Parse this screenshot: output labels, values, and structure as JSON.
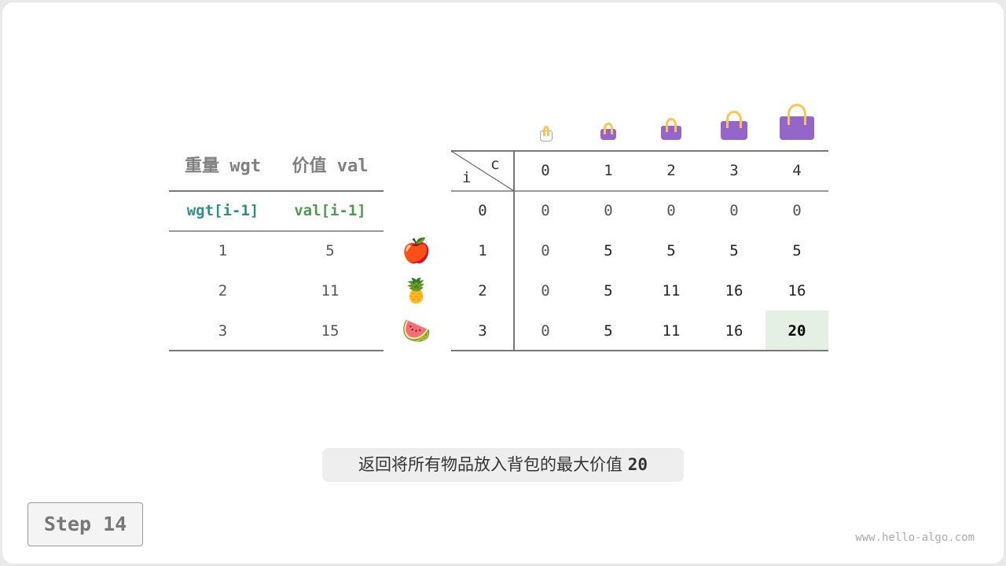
{
  "left_table": {
    "headers": [
      "重量 wgt",
      "价值 val"
    ],
    "subheaders": [
      "wgt[i-1]",
      "val[i-1]"
    ],
    "subheader_colors": [
      "#2f8f87",
      "#4e9a4e"
    ],
    "rows": [
      [
        "1",
        "5"
      ],
      [
        "2",
        "11"
      ],
      [
        "3",
        "15"
      ]
    ],
    "items": [
      "apple",
      "pineapple",
      "watermelon"
    ],
    "item_emoji": [
      "🍎",
      "🍍",
      "🍉"
    ]
  },
  "dp_table": {
    "corner_col": "c",
    "corner_row": "i",
    "capacities": [
      "0",
      "1",
      "2",
      "3",
      "4"
    ],
    "row_labels": [
      "0",
      "1",
      "2",
      "3"
    ],
    "cells": [
      [
        "0",
        "0",
        "0",
        "0",
        "0"
      ],
      [
        "0",
        "5",
        "5",
        "5",
        "5"
      ],
      [
        "0",
        "5",
        "11",
        "16",
        "16"
      ],
      [
        "0",
        "5",
        "11",
        "16",
        "20"
      ]
    ],
    "highlight": {
      "row": 3,
      "col": 4,
      "color": "#e3f0e3"
    },
    "bag_icons": [
      "bag-empty",
      "bag-1",
      "bag-2",
      "bag-3",
      "bag-4"
    ]
  },
  "caption": {
    "text": "返回将所有物品放入背包的最大价值 ",
    "value": "20"
  },
  "step_label": "Step 14",
  "footer": "www.hello-algo.com"
}
